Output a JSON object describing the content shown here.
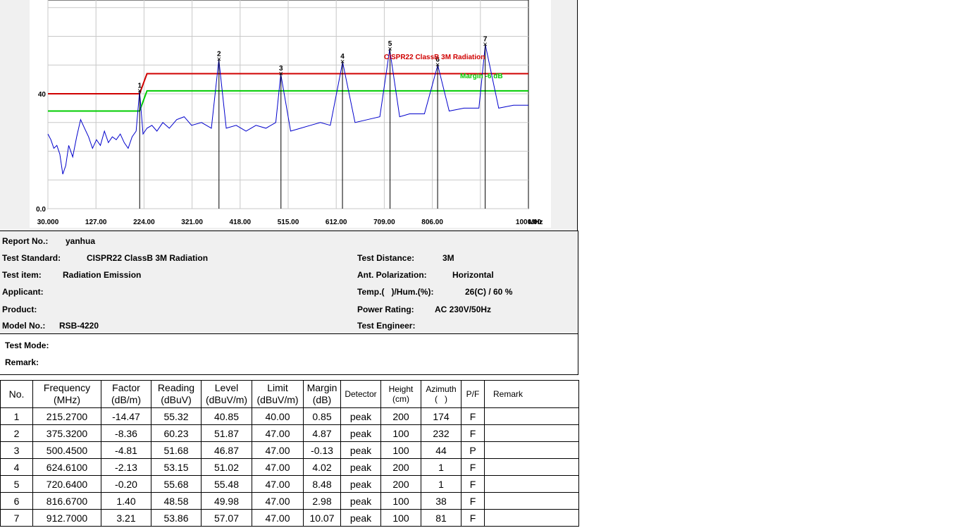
{
  "chart_data": {
    "type": "line",
    "x_unit": "MHz",
    "x_ticks": [
      "30.000",
      "127.00",
      "224.00",
      "321.00",
      "418.00",
      "515.00",
      "612.00",
      "709.00",
      "806.00",
      "1000.00"
    ],
    "y_ticks": [
      "40",
      "0.0"
    ],
    "xlim": [
      30,
      1000
    ],
    "ylim": [
      0,
      80
    ],
    "grid": true,
    "series": [
      {
        "name": "CISPR22 ClassB 3M Radiation",
        "color": "#d00000",
        "x": [
          30,
          215,
          215,
          230,
          230,
          1000
        ],
        "y": [
          40,
          40,
          40,
          47,
          47,
          47
        ]
      },
      {
        "name": "Margin -6 dB",
        "color": "#00cc00",
        "x": [
          30,
          215,
          215,
          230,
          230,
          1000
        ],
        "y": [
          34,
          34,
          34,
          41,
          41,
          41
        ]
      },
      {
        "color": "#0000cc",
        "x": [
          30,
          36,
          42,
          48,
          54,
          60,
          66,
          72,
          80,
          88,
          96,
          104,
          112,
          120,
          128,
          136,
          144,
          152,
          160,
          168,
          176,
          184,
          192,
          200,
          208,
          215,
          222,
          230,
          240,
          250,
          262,
          275,
          290,
          305,
          320,
          340,
          360,
          375,
          390,
          410,
          430,
          450,
          470,
          490,
          500,
          520,
          540,
          560,
          580,
          600,
          625,
          650,
          675,
          700,
          720,
          740,
          760,
          790,
          817,
          840,
          870,
          900,
          913,
          940,
          970,
          1000
        ],
        "y": [
          26,
          24,
          21,
          22,
          19,
          12,
          15,
          22,
          18,
          25,
          31,
          28,
          25,
          21,
          24,
          22,
          27,
          23,
          25,
          24,
          26,
          23,
          21,
          25,
          27,
          40.85,
          26,
          28,
          29,
          27,
          30,
          28,
          31,
          32,
          29,
          30,
          28,
          51.87,
          28,
          29,
          27,
          29,
          28,
          30,
          46.87,
          27,
          28,
          29,
          30,
          29,
          51.02,
          30,
          31,
          32,
          55.48,
          32,
          33,
          33,
          49.98,
          34,
          35,
          35,
          57.07,
          35,
          36,
          36
        ]
      }
    ],
    "markers": [
      {
        "label": "1",
        "x": 215.27,
        "y": 40.85
      },
      {
        "label": "2",
        "x": 375.32,
        "y": 51.87
      },
      {
        "label": "3",
        "x": 500.45,
        "y": 46.87
      },
      {
        "label": "4",
        "x": 624.61,
        "y": 51.02
      },
      {
        "label": "5",
        "x": 720.64,
        "y": 55.48
      },
      {
        "label": "6",
        "x": 816.67,
        "y": 49.98
      },
      {
        "label": "7",
        "x": 912.7,
        "y": 57.07
      }
    ],
    "annotations": [
      "CISPR22 ClassB 3M Radiation",
      "Margin -6 dB"
    ]
  },
  "info": {
    "report_no_label": "Report No.:",
    "report_no": "yanhua",
    "standard_label": "Test Standard:",
    "standard": "CISPR22 ClassB 3M Radiation",
    "item_label": "Test item:",
    "item": "Radiation Emission",
    "applicant_label": "Applicant:",
    "product_label": "Product:",
    "model_label": "Model No.:",
    "model": "RSB-4220",
    "distance_label": "Test Distance:",
    "distance": "3M",
    "polarization_label": "Ant. Polarization:",
    "polarization": "Horizontal",
    "temp_label": "Temp.(   )/Hum.(%):",
    "temp": "26(C) / 60 %",
    "power_label": "Power Rating:",
    "power": "AC 230V/50Hz",
    "engineer_label": "Test Engineer:",
    "mode_label": "Test Mode:",
    "remark_label": "Remark:"
  },
  "table": {
    "headers": [
      "No.",
      "Frequency (MHz)",
      "Factor (dB/m)",
      "Reading (dBuV)",
      "Level (dBuV/m)",
      "Limit (dBuV/m)",
      "Margin (dB)",
      "Detector",
      "Height (cm)",
      "Azimuth (   )",
      "P/F",
      "Remark"
    ],
    "rows": [
      [
        "1",
        "215.2700",
        "-14.47",
        "55.32",
        "40.85",
        "40.00",
        "0.85",
        "peak",
        "200",
        "174",
        "F",
        ""
      ],
      [
        "2",
        "375.3200",
        "-8.36",
        "60.23",
        "51.87",
        "47.00",
        "4.87",
        "peak",
        "100",
        "232",
        "F",
        ""
      ],
      [
        "3",
        "500.4500",
        "-4.81",
        "51.68",
        "46.87",
        "47.00",
        "-0.13",
        "peak",
        "100",
        "44",
        "P",
        ""
      ],
      [
        "4",
        "624.6100",
        "-2.13",
        "53.15",
        "51.02",
        "47.00",
        "4.02",
        "peak",
        "200",
        "1",
        "F",
        ""
      ],
      [
        "5",
        "720.6400",
        "-0.20",
        "55.68",
        "55.48",
        "47.00",
        "8.48",
        "peak",
        "200",
        "1",
        "F",
        ""
      ],
      [
        "6",
        "816.6700",
        "1.40",
        "48.58",
        "49.98",
        "47.00",
        "2.98",
        "peak",
        "100",
        "38",
        "F",
        ""
      ],
      [
        "7",
        "912.7000",
        "3.21",
        "53.86",
        "57.07",
        "47.00",
        "10.07",
        "peak",
        "100",
        "81",
        "F",
        ""
      ]
    ]
  }
}
